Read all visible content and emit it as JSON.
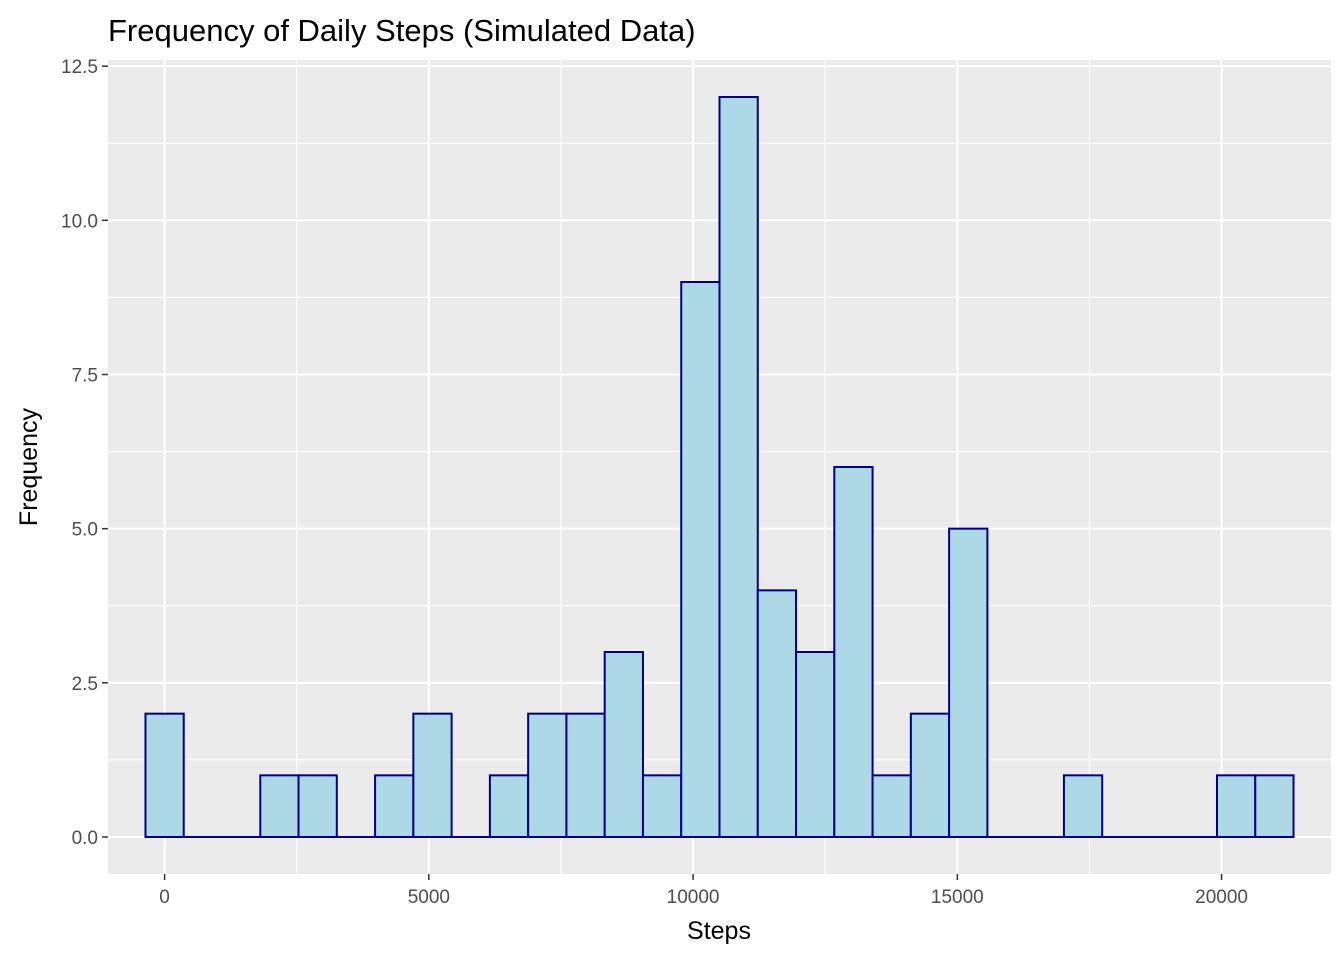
{
  "chart_data": {
    "type": "bar",
    "title": "Frequency of Daily Steps (Simulated Data)",
    "xlabel": "Steps",
    "ylabel": "Frequency",
    "xlim": [
      -1071,
      22071
    ],
    "ylim": [
      -0.6,
      12.6
    ],
    "x_ticks": [
      0,
      5000,
      10000,
      15000,
      20000
    ],
    "x_tick_labels": [
      "0",
      "5000",
      "10000",
      "15000",
      "20000"
    ],
    "y_ticks": [
      0,
      2.5,
      5,
      7.5,
      10,
      12.5
    ],
    "y_tick_labels": [
      "0.0",
      "2.5",
      "5.0",
      "7.5",
      "10.0",
      "12.5"
    ],
    "bin_width": 724.14,
    "bin_start": -362.07,
    "values": [
      2,
      0,
      0,
      1,
      1,
      0,
      1,
      2,
      0,
      1,
      2,
      2,
      3,
      1,
      9,
      12,
      4,
      3,
      6,
      1,
      2,
      5,
      0,
      0,
      1,
      0,
      0,
      0,
      1,
      1
    ],
    "fill_color": "#add8e6",
    "outline_color": "#00008b",
    "panel_background": "#ebebeb",
    "grid": true,
    "legend": "none"
  }
}
